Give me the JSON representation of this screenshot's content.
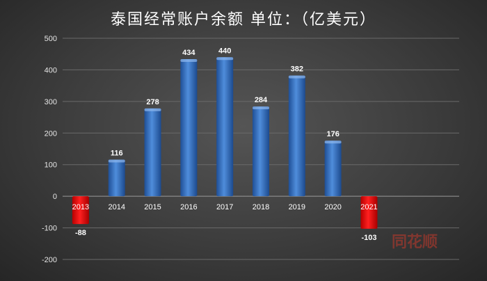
{
  "chart_data": {
    "type": "bar",
    "title": "泰国经常账户余额 单位：（亿美元）",
    "categories": [
      "2013",
      "2014",
      "2015",
      "2016",
      "2017",
      "2018",
      "2019",
      "2020",
      "2021"
    ],
    "values": [
      -88,
      116,
      278,
      434,
      440,
      284,
      382,
      176,
      -103
    ],
    "data_labels": [
      "-88",
      "116",
      "278",
      "434",
      "440",
      "284",
      "382",
      "176",
      "-103"
    ],
    "ylim": [
      -200,
      500
    ],
    "yticks": [
      -200,
      -100,
      0,
      100,
      200,
      300,
      400,
      500
    ],
    "grid": true,
    "legend": "none",
    "colors": {
      "positive": "#3a78c8",
      "negative": "#e00000"
    }
  },
  "watermark": "同花顺"
}
